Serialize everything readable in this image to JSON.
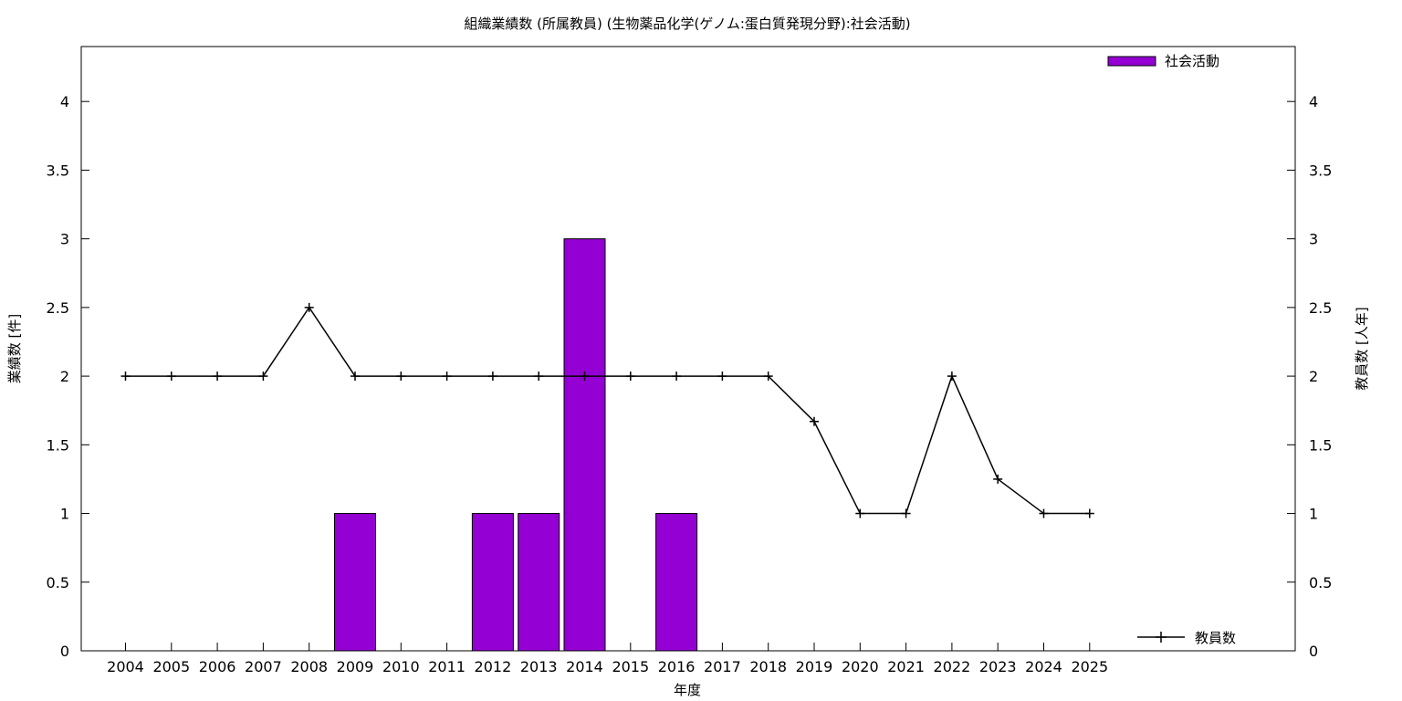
{
  "chart_data": {
    "type": "bar",
    "title": "組織業績数 (所属教員) (生物薬品化学(ゲノム:蛋白質発現分野):社会活動)",
    "xlabel": "年度",
    "ylabel": "業績数 [件]",
    "y2label": "教員数 [人年]",
    "categories": [
      "2004",
      "2005",
      "2006",
      "2007",
      "2008",
      "2009",
      "2010",
      "2011",
      "2012",
      "2013",
      "2014",
      "2015",
      "2016",
      "2017",
      "2018",
      "2019",
      "2020",
      "2021",
      "2022",
      "2023",
      "2024",
      "2025"
    ],
    "ylim": [
      0,
      4.4
    ],
    "y2lim": [
      0,
      4.4
    ],
    "yticks": [
      "0",
      "0.5",
      "1",
      "1.5",
      "2",
      "2.5",
      "3",
      "3.5",
      "4"
    ],
    "y2ticks": [
      "0",
      "0.5",
      "1",
      "1.5",
      "2",
      "2.5",
      "3",
      "3.5",
      "4"
    ],
    "grid": false,
    "legend_placement": "top-right (bars) / bottom-right (line)",
    "series": [
      {
        "name": "社会活動",
        "kind": "bar",
        "axis": "left",
        "color": "#9400d3",
        "values": [
          0,
          0,
          0,
          0,
          0,
          1,
          0,
          0,
          1,
          1,
          3,
          0,
          1,
          0,
          0,
          0,
          0,
          0,
          0,
          0,
          0,
          0
        ]
      },
      {
        "name": "教員数",
        "kind": "line",
        "axis": "right",
        "color": "#000000",
        "values": [
          2,
          2,
          2,
          2,
          2.5,
          2,
          2,
          2,
          2,
          2,
          2,
          2,
          2,
          2,
          2,
          1.67,
          1,
          1,
          2,
          1.25,
          1,
          1
        ]
      }
    ]
  }
}
